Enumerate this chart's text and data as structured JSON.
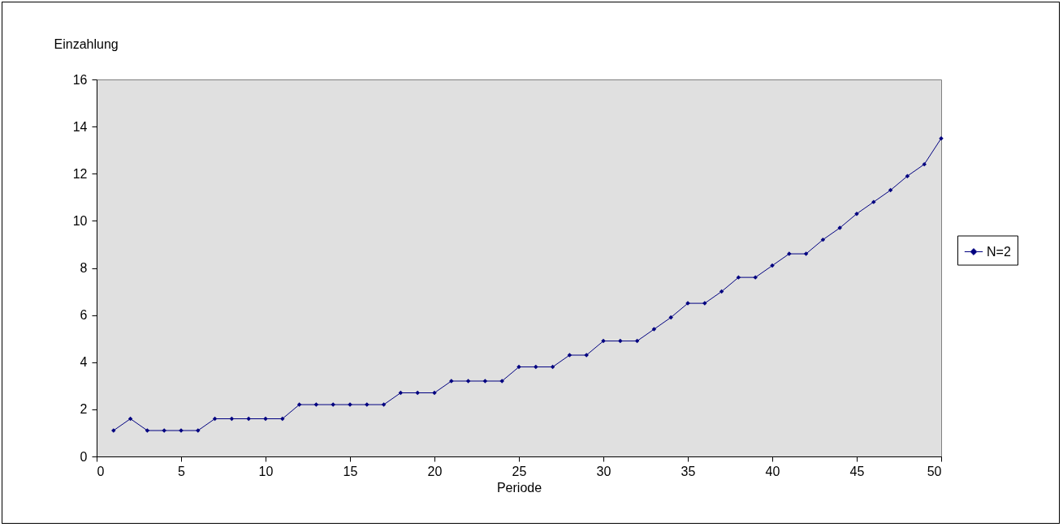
{
  "chart_data": {
    "type": "line",
    "xlabel": "Periode",
    "ylabel": "Einzahlung",
    "x": [
      1,
      2,
      3,
      4,
      5,
      6,
      7,
      8,
      9,
      10,
      11,
      12,
      13,
      14,
      15,
      16,
      17,
      18,
      19,
      20,
      21,
      22,
      23,
      24,
      25,
      26,
      27,
      28,
      29,
      30,
      31,
      32,
      33,
      34,
      35,
      36,
      37,
      38,
      39,
      40,
      41,
      42,
      43,
      44,
      45,
      46,
      47,
      48,
      49,
      50
    ],
    "series": [
      {
        "name": "N=2",
        "color": "#000080",
        "values": [
          1.1,
          1.6,
          1.1,
          1.1,
          1.1,
          1.1,
          1.6,
          1.6,
          1.6,
          1.6,
          1.6,
          2.2,
          2.2,
          2.2,
          2.2,
          2.2,
          2.2,
          2.7,
          2.7,
          2.7,
          3.2,
          3.2,
          3.2,
          3.2,
          3.8,
          3.8,
          3.8,
          4.3,
          4.3,
          4.9,
          4.9,
          4.9,
          5.4,
          5.9,
          6.5,
          6.5,
          7.0,
          7.6,
          7.6,
          8.1,
          8.6,
          8.6,
          9.2,
          9.7,
          10.3,
          10.8,
          11.3,
          11.9,
          12.4,
          13.5
        ]
      }
    ],
    "xlim": [
      0,
      50
    ],
    "xticks": [
      0,
      5,
      10,
      15,
      20,
      25,
      30,
      35,
      40,
      45,
      50
    ],
    "ylim": [
      0,
      16
    ],
    "yticks": [
      0,
      2,
      4,
      6,
      8,
      10,
      12,
      14,
      16
    ],
    "grid": false,
    "legend": "right",
    "marker": "diamond",
    "line_style": "solid"
  }
}
